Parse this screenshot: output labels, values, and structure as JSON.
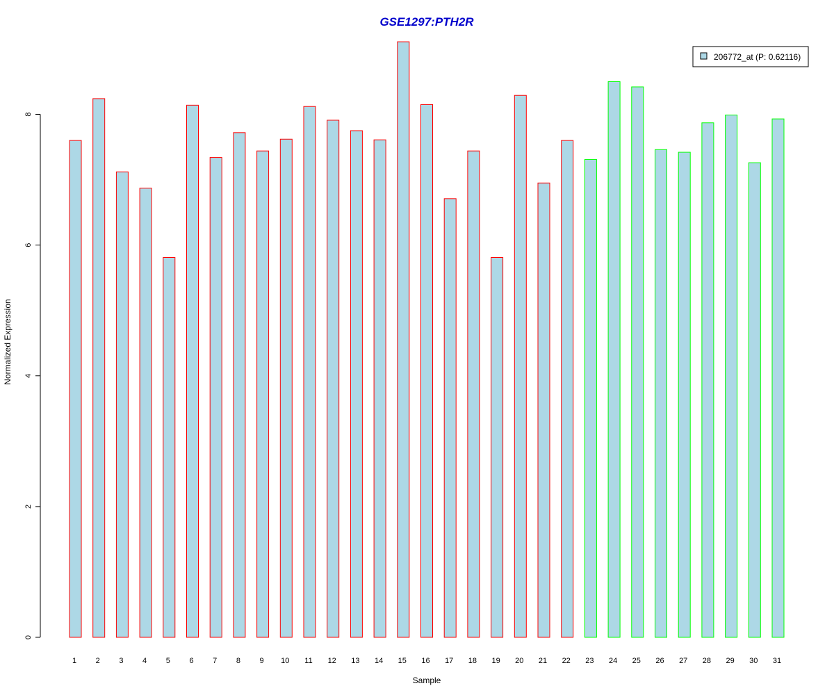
{
  "chart_data": {
    "type": "bar",
    "title": "GSE1297:PTH2R",
    "xlabel": "Sample",
    "ylabel": "Normalized Expression",
    "categories": [
      "1",
      "2",
      "3",
      "4",
      "5",
      "6",
      "7",
      "8",
      "9",
      "10",
      "11",
      "12",
      "13",
      "14",
      "15",
      "16",
      "17",
      "18",
      "19",
      "20",
      "21",
      "22",
      "23",
      "24",
      "25",
      "26",
      "27",
      "28",
      "29",
      "30",
      "31"
    ],
    "values": [
      7.6,
      8.24,
      7.12,
      6.87,
      5.81,
      8.14,
      7.34,
      7.72,
      7.44,
      7.62,
      8.12,
      7.91,
      7.75,
      7.61,
      9.11,
      8.15,
      6.71,
      7.44,
      5.81,
      8.29,
      6.95,
      7.6,
      7.31,
      8.5,
      8.42,
      7.46,
      7.42,
      7.87,
      7.99,
      7.26,
      7.93
    ],
    "bar_groups": [
      "red",
      "red",
      "red",
      "red",
      "red",
      "red",
      "red",
      "red",
      "red",
      "red",
      "red",
      "red",
      "red",
      "red",
      "red",
      "red",
      "red",
      "red",
      "red",
      "red",
      "red",
      "red",
      "green",
      "green",
      "green",
      "green",
      "green",
      "green",
      "green",
      "green",
      "green"
    ],
    "yticks": [
      0,
      2,
      4,
      6,
      8
    ],
    "ylim": [
      0,
      9.11
    ],
    "legend": {
      "label": "206772_at (P: 0.62116)",
      "position": "top-right"
    },
    "colors": {
      "bar_fill": "#add8e6",
      "red_border": "#ff0000",
      "green_border": "#00ff00",
      "title": "#0000cc"
    }
  }
}
